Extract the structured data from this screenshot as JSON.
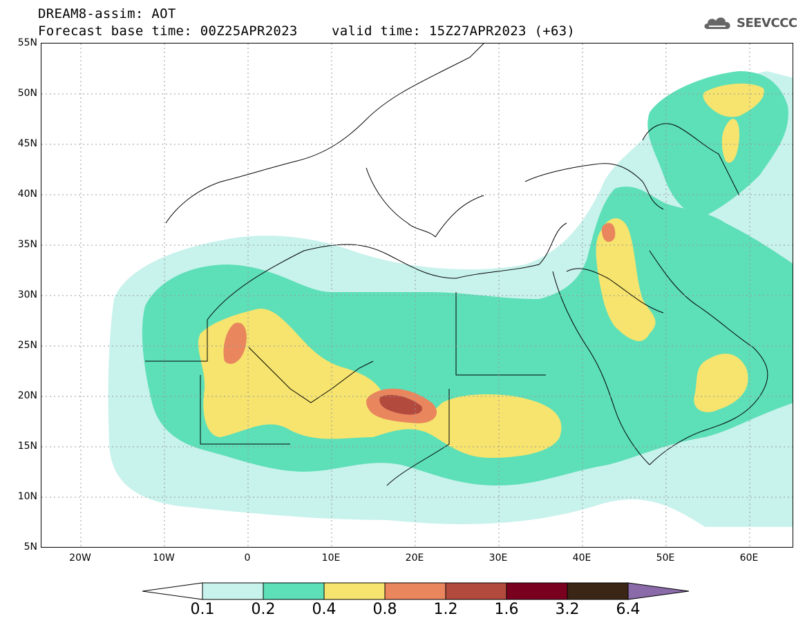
{
  "header": {
    "line1": "DREAM8-assim: AOT",
    "base_time": "Forecast base time: 00Z25APR2023",
    "valid_time": "valid time: 15Z27APR2023 (+63)"
  },
  "logo": {
    "text": "SEEVCCC",
    "icon": "cloud-icon"
  },
  "axes": {
    "lat_labels": [
      "55N",
      "50N",
      "45N",
      "40N",
      "35N",
      "30N",
      "25N",
      "20N",
      "15N",
      "10N",
      "5N"
    ],
    "lon_labels": [
      "20W",
      "10W",
      "0",
      "10E",
      "20E",
      "30E",
      "40E",
      "50E",
      "60E"
    ]
  },
  "colorbar": {
    "labels": [
      "0.1",
      "0.2",
      "0.4",
      "0.8",
      "1.2",
      "1.6",
      "3.2",
      "6.4"
    ],
    "colors": [
      "#ffffff",
      "#c8f2ec",
      "#5ddfb8",
      "#f6e46e",
      "#e9865e",
      "#b24a3d",
      "#7a0020",
      "#3b2616",
      "#8a6aa8"
    ]
  }
}
